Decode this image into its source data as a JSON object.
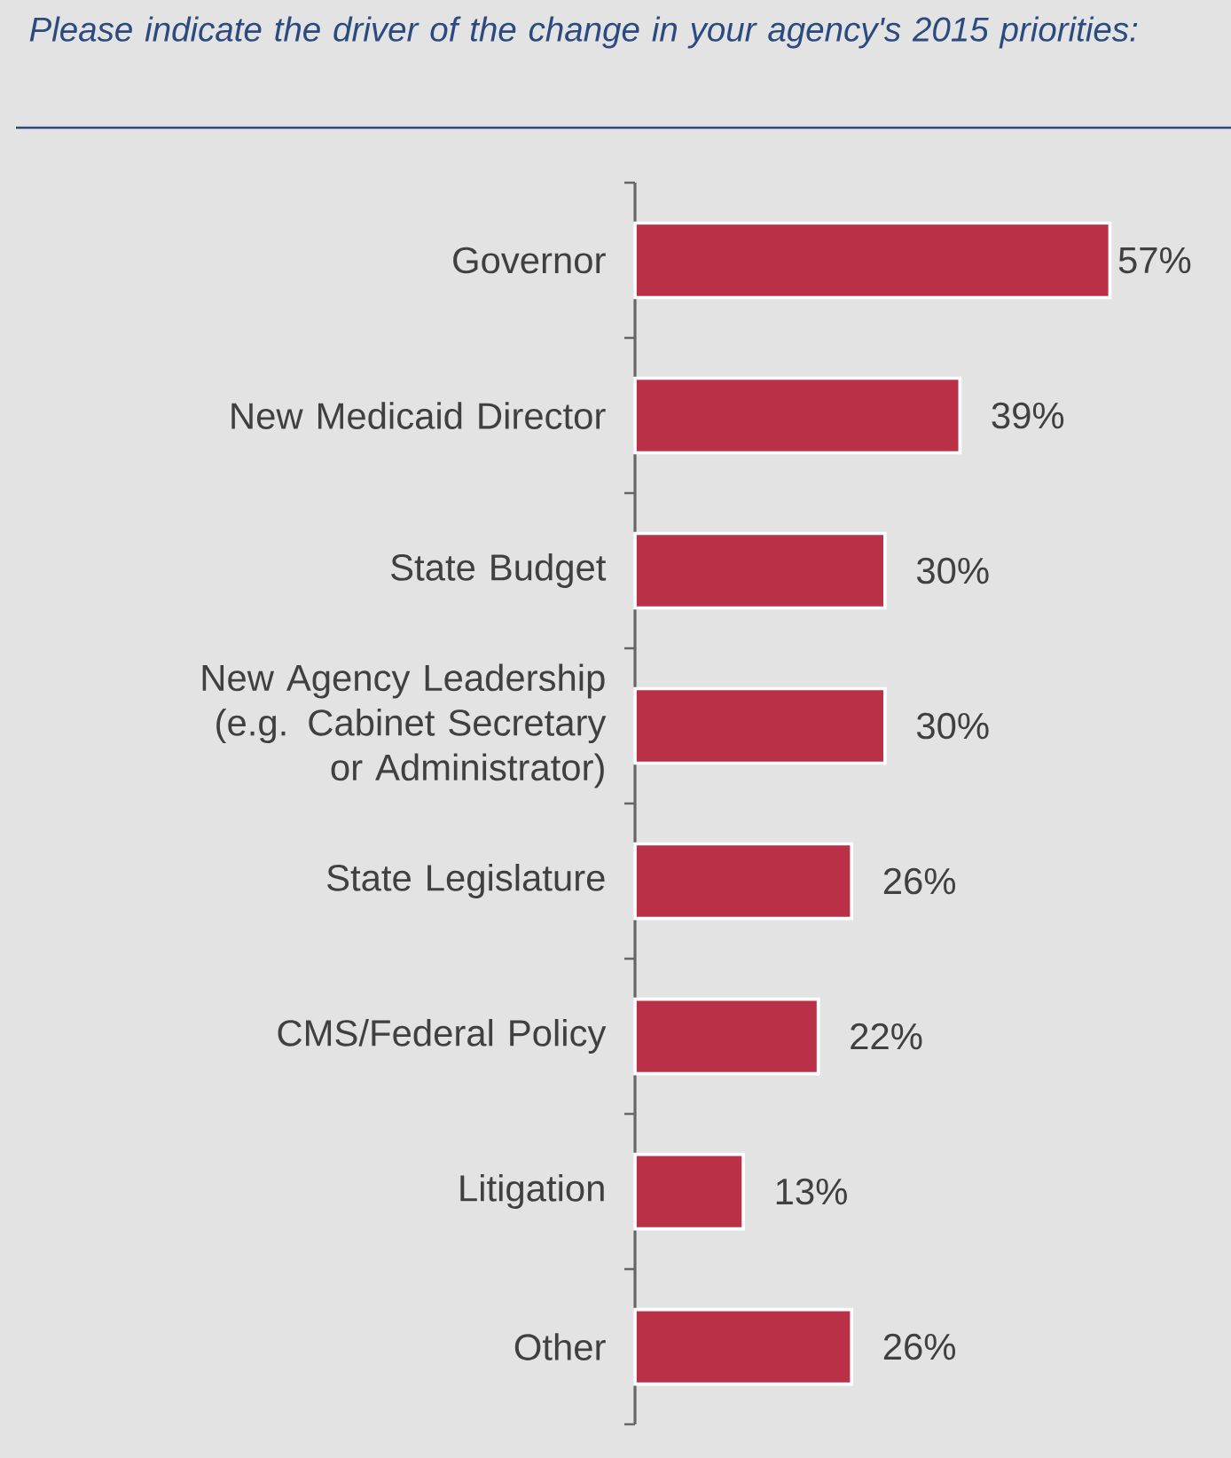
{
  "chart_data": {
    "type": "bar",
    "orientation": "horizontal",
    "title": "Please indicate the driver of the change in your agency's 2015 priorities:",
    "categories": [
      "Governor",
      "New Medicaid Director",
      "State Budget",
      "New Agency Leadership (e.g. Cabinet Secretary or Administrator)",
      "State Legislature",
      "CMS/Federal Policy",
      "Litigation",
      "Other"
    ],
    "values": [
      57,
      39,
      30,
      30,
      26,
      22,
      13,
      26
    ],
    "value_labels": [
      "57%",
      "39%",
      "30%",
      "30%",
      "26%",
      "22%",
      "13%",
      "26%"
    ],
    "color": "#b93047"
  }
}
